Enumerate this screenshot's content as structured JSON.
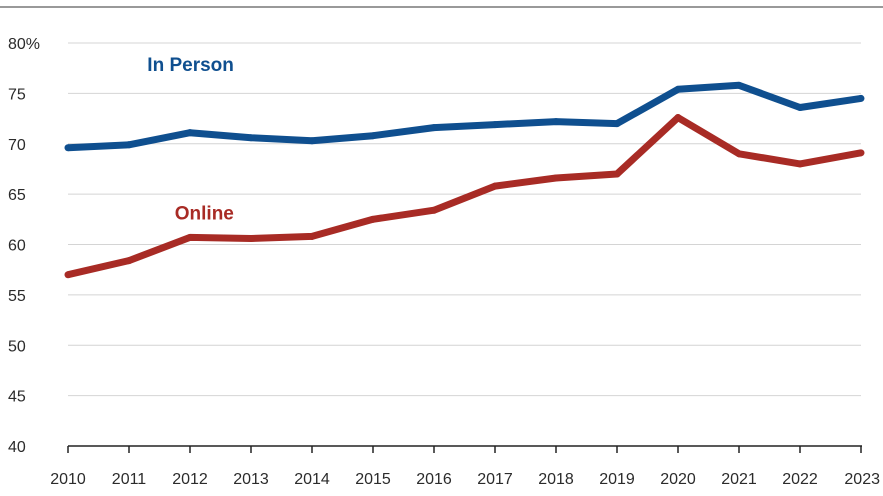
{
  "chart_data": {
    "type": "line",
    "title": "",
    "xlabel": "",
    "ylabel": "",
    "x": [
      2010,
      2011,
      2012,
      2013,
      2014,
      2015,
      2016,
      2017,
      2018,
      2019,
      2020,
      2021,
      2022,
      2023
    ],
    "x_tick_labels": [
      "2010",
      "2011",
      "2012",
      "2013",
      "2014",
      "2015",
      "2016",
      "2017",
      "2018",
      "2019",
      "2020",
      "2021",
      "2022",
      "2023"
    ],
    "ylim": [
      40,
      80
    ],
    "y_ticks": [
      40,
      45,
      50,
      55,
      60,
      65,
      70,
      75,
      80
    ],
    "y_tick_labels": [
      "40",
      "45",
      "50",
      "55",
      "60",
      "65",
      "70",
      "75",
      "80%"
    ],
    "grid": "horizontal",
    "legend": "none",
    "series": [
      {
        "name": "In Person",
        "color": "#0f4f8f",
        "values": [
          69.6,
          69.9,
          71.1,
          70.6,
          70.3,
          70.8,
          71.6,
          71.9,
          72.2,
          72.0,
          75.4,
          75.8,
          73.6,
          74.5
        ]
      },
      {
        "name": "Online",
        "color": "#a82b25",
        "values": [
          57.0,
          58.4,
          60.7,
          60.6,
          60.8,
          62.5,
          63.4,
          65.8,
          66.6,
          67.0,
          72.6,
          69.0,
          68.0,
          69.1
        ]
      }
    ]
  }
}
